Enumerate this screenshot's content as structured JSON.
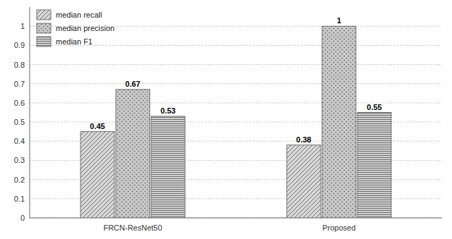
{
  "chart_data": {
    "type": "bar",
    "categories": [
      "FRCN-ResNet50",
      "Proposed"
    ],
    "series": [
      {
        "name": "median recall",
        "color": "#d8d8d8",
        "values": [
          0.45,
          0.38
        ]
      },
      {
        "name": "median precision",
        "color": "#c8c8c8",
        "values": [
          0.67,
          1.0
        ]
      },
      {
        "name": "median F1",
        "color": "#d0d0d0",
        "values": [
          0.53,
          0.55
        ]
      }
    ],
    "ylim": [
      0,
      1.1
    ],
    "yticks": [
      0,
      0.1,
      0.2,
      0.3,
      0.4,
      0.5,
      0.6,
      0.7,
      0.8,
      0.9,
      1
    ],
    "grid": true,
    "legend": "upper left",
    "data_labels": true
  }
}
